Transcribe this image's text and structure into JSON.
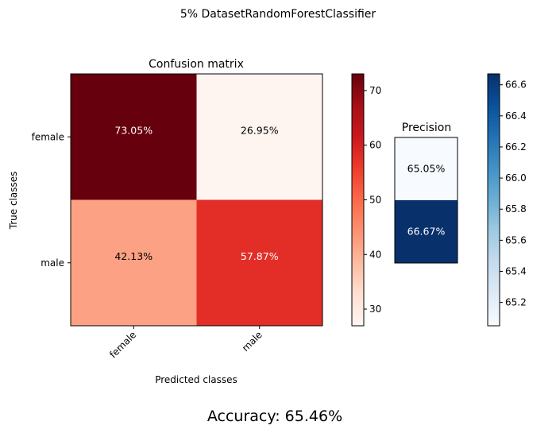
{
  "figure_title": "5% DatasetRandomForestClassifier",
  "accuracy_text": "Accuracy: 65.46%",
  "chart_data": [
    {
      "type": "heatmap",
      "title": "Confusion matrix",
      "xlabel": "Predicted classes",
      "ylabel": "True classes",
      "x_categories": [
        "female",
        "male"
      ],
      "y_categories": [
        "female",
        "male"
      ],
      "values": [
        [
          73.05,
          26.95
        ],
        [
          42.13,
          57.87
        ]
      ],
      "cell_labels": [
        [
          "73.05%",
          "26.95%"
        ],
        [
          "42.13%",
          "57.87%"
        ]
      ],
      "colormap": "Reds",
      "colorbar": {
        "range": [
          26.95,
          73.05
        ],
        "ticks": [
          30,
          40,
          50,
          60,
          70
        ]
      }
    },
    {
      "type": "heatmap",
      "title": "Precision",
      "x_categories": [],
      "y_categories": [],
      "values": [
        [
          65.05
        ],
        [
          66.67
        ]
      ],
      "cell_labels": [
        [
          "65.05%"
        ],
        [
          "66.67%"
        ]
      ],
      "colormap": "Blues",
      "colorbar": {
        "range": [
          65.05,
          66.67
        ],
        "ticks": [
          65.2,
          65.4,
          65.6,
          65.8,
          66.0,
          66.2,
          66.4,
          66.6
        ]
      }
    }
  ]
}
